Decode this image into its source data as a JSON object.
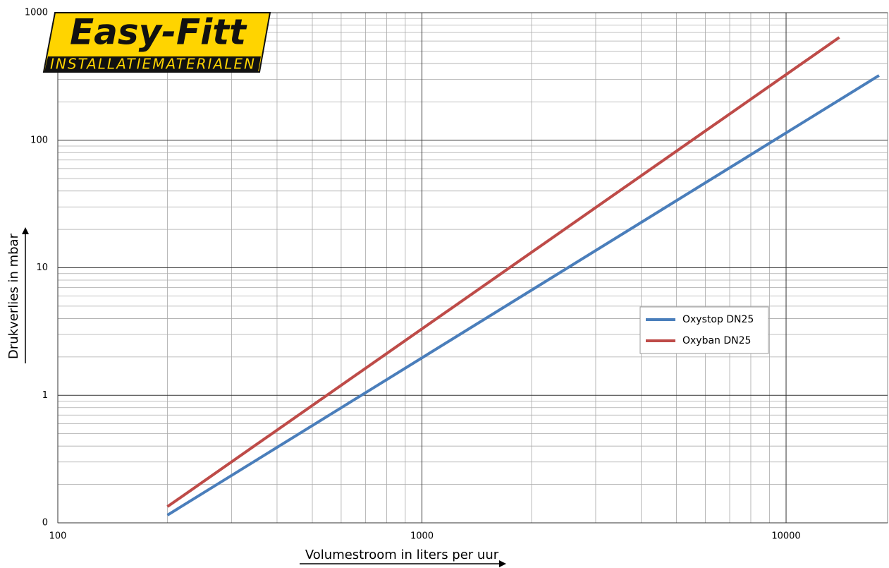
{
  "logo": {
    "name": "Easy-Fitt",
    "tagline": "INSTALLATIEMATERIALEN"
  },
  "chart_data": {
    "type": "line",
    "xlabel": "Volumestroom in liters per uur",
    "ylabel": "Drukverlies in mbar",
    "xscale": "log",
    "yscale": "log",
    "xlim": [
      100,
      19000
    ],
    "ylim": [
      0.1,
      1000
    ],
    "xticks": [
      100,
      1000,
      10000
    ],
    "yticks": [
      {
        "value": 0.1,
        "label": "0"
      },
      1,
      10,
      100,
      1000
    ],
    "grid": true,
    "minor_grid": true,
    "legend": "right",
    "series": [
      {
        "name": "Oxystop DN25",
        "color": "#4a7ebb",
        "x": [
          200,
          18000
        ],
        "values": [
          0.115,
          322
        ]
      },
      {
        "name": "Oxyban DN25",
        "color": "#be4b48",
        "x": [
          200,
          14000
        ],
        "values": [
          0.134,
          640
        ]
      }
    ]
  }
}
